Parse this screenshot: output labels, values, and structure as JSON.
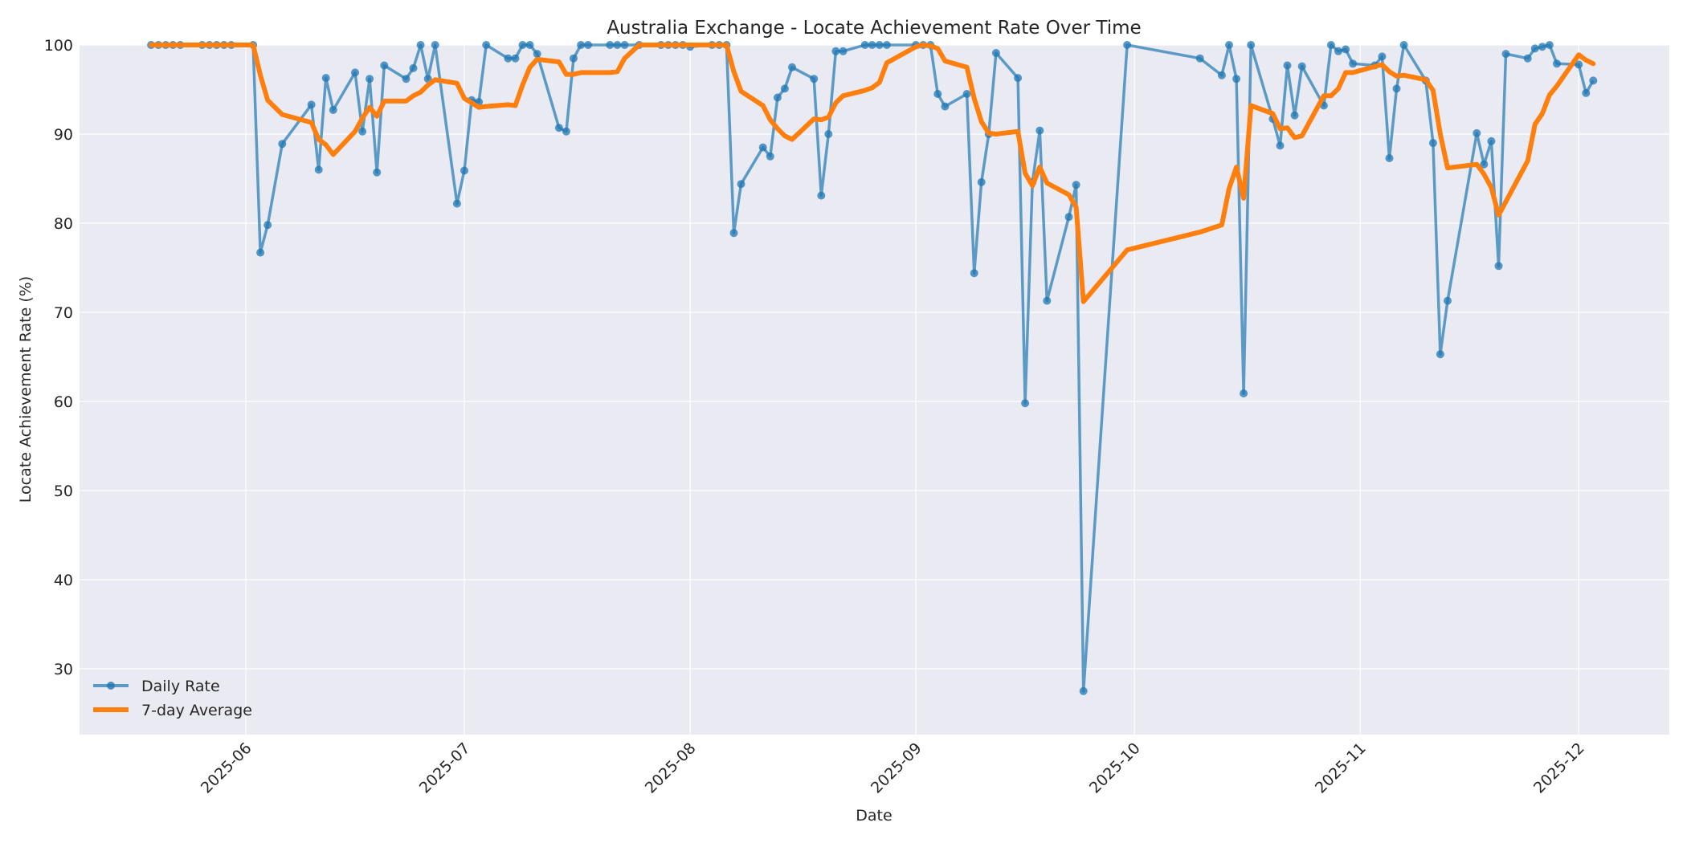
{
  "chart_data": {
    "type": "line",
    "title": "Australia Exchange - Locate Achievement Rate Over Time",
    "xlabel": "Date",
    "ylabel": "Locate Achievement Rate (%)",
    "ylim": [
      22.5,
      100
    ],
    "yticks": [
      30,
      40,
      50,
      60,
      70,
      80,
      90,
      100
    ],
    "xticks": [
      "2025-06",
      "2025-07",
      "2025-08",
      "2025-09",
      "2025-10",
      "2025-11",
      "2025-12"
    ],
    "xlim": [
      "2025-05-10",
      "2025-12-13"
    ],
    "grid": true,
    "legend_position": "lower left",
    "colors": {
      "daily": "#1f77b4",
      "avg": "#ff7f0e",
      "plot_bg": "#eaeaf2",
      "grid": "#ffffff"
    },
    "series": [
      {
        "name": "Daily Rate",
        "style": "line-marker",
        "points": [
          [
            "2025-05-19",
            100
          ],
          [
            "2025-05-20",
            100
          ],
          [
            "2025-05-21",
            100
          ],
          [
            "2025-05-22",
            100
          ],
          [
            "2025-05-23",
            100
          ],
          [
            "2025-05-26",
            100
          ],
          [
            "2025-05-27",
            100
          ],
          [
            "2025-05-28",
            100
          ],
          [
            "2025-05-29",
            100
          ],
          [
            "2025-05-30",
            100
          ],
          [
            "2025-06-02",
            100
          ],
          [
            "2025-06-03",
            76.7
          ],
          [
            "2025-06-04",
            79.8
          ],
          [
            "2025-06-06",
            88.9
          ],
          [
            "2025-06-10",
            93.3
          ],
          [
            "2025-06-11",
            86.0
          ],
          [
            "2025-06-12",
            96.3
          ],
          [
            "2025-06-13",
            92.7
          ],
          [
            "2025-06-16",
            96.9
          ],
          [
            "2025-06-17",
            90.3
          ],
          [
            "2025-06-18",
            96.2
          ],
          [
            "2025-06-19",
            85.7
          ],
          [
            "2025-06-20",
            97.7
          ],
          [
            "2025-06-23",
            96.2
          ],
          [
            "2025-06-24",
            97.4
          ],
          [
            "2025-06-25",
            100
          ],
          [
            "2025-06-26",
            96.2
          ],
          [
            "2025-06-27",
            100
          ],
          [
            "2025-06-30",
            82.2
          ],
          [
            "2025-07-01",
            85.9
          ],
          [
            "2025-07-02",
            93.8
          ],
          [
            "2025-07-03",
            93.6
          ],
          [
            "2025-07-04",
            100
          ],
          [
            "2025-07-07",
            98.5
          ],
          [
            "2025-07-08",
            98.5
          ],
          [
            "2025-07-09",
            100
          ],
          [
            "2025-07-10",
            100
          ],
          [
            "2025-07-11",
            99.0
          ],
          [
            "2025-07-14",
            90.7
          ],
          [
            "2025-07-15",
            90.3
          ],
          [
            "2025-07-16",
            98.5
          ],
          [
            "2025-07-17",
            100
          ],
          [
            "2025-07-18",
            100
          ],
          [
            "2025-07-21",
            100
          ],
          [
            "2025-07-22",
            100
          ],
          [
            "2025-07-23",
            100
          ],
          [
            "2025-07-25",
            100
          ],
          [
            "2025-07-28",
            100
          ],
          [
            "2025-07-29",
            100
          ],
          [
            "2025-07-30",
            100
          ],
          [
            "2025-07-31",
            100
          ],
          [
            "2025-08-01",
            99.8
          ],
          [
            "2025-08-04",
            100
          ],
          [
            "2025-08-05",
            100
          ],
          [
            "2025-08-06",
            100
          ],
          [
            "2025-08-07",
            78.9
          ],
          [
            "2025-08-08",
            84.4
          ],
          [
            "2025-08-11",
            88.5
          ],
          [
            "2025-08-12",
            87.5
          ],
          [
            "2025-08-13",
            94.1
          ],
          [
            "2025-08-14",
            95.1
          ],
          [
            "2025-08-15",
            97.5
          ],
          [
            "2025-08-18",
            96.2
          ],
          [
            "2025-08-19",
            83.1
          ],
          [
            "2025-08-20",
            90.0
          ],
          [
            "2025-08-21",
            99.3
          ],
          [
            "2025-08-22",
            99.3
          ],
          [
            "2025-08-25",
            100
          ],
          [
            "2025-08-26",
            100
          ],
          [
            "2025-08-27",
            100
          ],
          [
            "2025-08-28",
            100
          ],
          [
            "2025-09-01",
            100
          ],
          [
            "2025-09-02",
            100
          ],
          [
            "2025-09-03",
            100
          ],
          [
            "2025-09-04",
            94.5
          ],
          [
            "2025-09-05",
            93.1
          ],
          [
            "2025-09-08",
            94.5
          ],
          [
            "2025-09-09",
            74.4
          ],
          [
            "2025-09-10",
            84.6
          ],
          [
            "2025-09-11",
            90.0
          ],
          [
            "2025-09-12",
            99.1
          ],
          [
            "2025-09-15",
            96.3
          ],
          [
            "2025-09-16",
            59.8
          ],
          [
            "2025-09-17",
            84.6
          ],
          [
            "2025-09-18",
            90.4
          ],
          [
            "2025-09-19",
            71.3
          ],
          [
            "2025-09-22",
            80.7
          ],
          [
            "2025-09-23",
            84.3
          ],
          [
            "2025-09-24",
            27.5
          ],
          [
            "2025-09-30",
            100
          ],
          [
            "2025-10-10",
            98.5
          ],
          [
            "2025-10-13",
            96.6
          ],
          [
            "2025-10-14",
            100
          ],
          [
            "2025-10-15",
            96.2
          ],
          [
            "2025-10-16",
            60.9
          ],
          [
            "2025-10-17",
            100
          ],
          [
            "2025-10-20",
            91.7
          ],
          [
            "2025-10-21",
            88.7
          ],
          [
            "2025-10-22",
            97.7
          ],
          [
            "2025-10-23",
            92.1
          ],
          [
            "2025-10-24",
            97.6
          ],
          [
            "2025-10-27",
            93.2
          ],
          [
            "2025-10-28",
            100
          ],
          [
            "2025-10-29",
            99.3
          ],
          [
            "2025-10-30",
            99.5
          ],
          [
            "2025-10-31",
            97.9
          ],
          [
            "2025-11-03",
            97.7
          ],
          [
            "2025-11-04",
            98.7
          ],
          [
            "2025-11-05",
            87.3
          ],
          [
            "2025-11-06",
            95.1
          ],
          [
            "2025-11-07",
            100
          ],
          [
            "2025-11-10",
            96.0
          ],
          [
            "2025-11-11",
            89.0
          ],
          [
            "2025-11-12",
            65.3
          ],
          [
            "2025-11-13",
            71.3
          ],
          [
            "2025-11-17",
            90.1
          ],
          [
            "2025-11-18",
            86.6
          ],
          [
            "2025-11-19",
            89.2
          ],
          [
            "2025-11-20",
            75.2
          ],
          [
            "2025-11-21",
            99.0
          ],
          [
            "2025-11-24",
            98.5
          ],
          [
            "2025-11-25",
            99.6
          ],
          [
            "2025-11-26",
            99.8
          ],
          [
            "2025-11-27",
            100
          ],
          [
            "2025-11-28",
            97.9
          ],
          [
            "2025-12-01",
            97.8
          ],
          [
            "2025-12-02",
            94.6
          ],
          [
            "2025-12-03",
            96.0
          ]
        ]
      },
      {
        "name": "7-day Average",
        "style": "line",
        "points": [
          [
            "2025-05-19",
            100
          ],
          [
            "2025-06-02",
            100
          ],
          [
            "2025-06-03",
            96.6
          ],
          [
            "2025-06-04",
            93.8
          ],
          [
            "2025-06-06",
            92.2
          ],
          [
            "2025-06-10",
            91.3
          ],
          [
            "2025-06-11",
            89.4
          ],
          [
            "2025-06-12",
            88.8
          ],
          [
            "2025-06-13",
            87.7
          ],
          [
            "2025-06-16",
            90.3
          ],
          [
            "2025-06-17",
            91.8
          ],
          [
            "2025-06-18",
            93.0
          ],
          [
            "2025-06-19",
            92.0
          ],
          [
            "2025-06-20",
            93.7
          ],
          [
            "2025-06-23",
            93.7
          ],
          [
            "2025-06-24",
            94.3
          ],
          [
            "2025-06-25",
            94.7
          ],
          [
            "2025-06-26",
            95.5
          ],
          [
            "2025-06-27",
            96.1
          ],
          [
            "2025-06-30",
            95.7
          ],
          [
            "2025-07-01",
            94.0
          ],
          [
            "2025-07-02",
            93.5
          ],
          [
            "2025-07-03",
            93.0
          ],
          [
            "2025-07-04",
            93.1
          ],
          [
            "2025-07-07",
            93.3
          ],
          [
            "2025-07-08",
            93.2
          ],
          [
            "2025-07-09",
            95.5
          ],
          [
            "2025-07-10",
            97.5
          ],
          [
            "2025-07-11",
            98.4
          ],
          [
            "2025-07-14",
            98.1
          ],
          [
            "2025-07-15",
            96.7
          ],
          [
            "2025-07-16",
            96.7
          ],
          [
            "2025-07-17",
            96.9
          ],
          [
            "2025-07-18",
            96.9
          ],
          [
            "2025-07-21",
            96.9
          ],
          [
            "2025-07-22",
            97.0
          ],
          [
            "2025-07-23",
            98.5
          ],
          [
            "2025-07-25",
            100
          ],
          [
            "2025-08-06",
            100
          ],
          [
            "2025-08-07",
            97.0
          ],
          [
            "2025-08-08",
            94.8
          ],
          [
            "2025-08-11",
            93.2
          ],
          [
            "2025-08-12",
            91.6
          ],
          [
            "2025-08-13",
            90.6
          ],
          [
            "2025-08-14",
            89.8
          ],
          [
            "2025-08-15",
            89.4
          ],
          [
            "2025-08-18",
            91.7
          ],
          [
            "2025-08-19",
            91.6
          ],
          [
            "2025-08-20",
            91.9
          ],
          [
            "2025-08-21",
            93.5
          ],
          [
            "2025-08-22",
            94.3
          ],
          [
            "2025-08-25",
            94.9
          ],
          [
            "2025-08-26",
            95.2
          ],
          [
            "2025-08-27",
            95.8
          ],
          [
            "2025-08-28",
            98.0
          ],
          [
            "2025-09-01",
            99.8
          ],
          [
            "2025-09-02",
            100
          ],
          [
            "2025-09-03",
            99.9
          ],
          [
            "2025-09-04",
            99.6
          ],
          [
            "2025-09-05",
            98.2
          ],
          [
            "2025-09-08",
            97.5
          ],
          [
            "2025-09-09",
            94.0
          ],
          [
            "2025-09-10",
            91.4
          ],
          [
            "2025-09-11",
            90.1
          ],
          [
            "2025-09-12",
            90.0
          ],
          [
            "2025-09-15",
            90.3
          ],
          [
            "2025-09-16",
            85.6
          ],
          [
            "2025-09-17",
            84.2
          ],
          [
            "2025-09-18",
            86.3
          ],
          [
            "2025-09-19",
            84.5
          ],
          [
            "2025-09-22",
            83.2
          ],
          [
            "2025-09-23",
            81.8
          ],
          [
            "2025-09-24",
            71.2
          ],
          [
            "2025-09-30",
            77.0
          ],
          [
            "2025-10-10",
            79.0
          ],
          [
            "2025-10-13",
            79.8
          ],
          [
            "2025-10-14",
            83.9
          ],
          [
            "2025-10-15",
            86.3
          ],
          [
            "2025-10-16",
            82.8
          ],
          [
            "2025-10-17",
            93.2
          ],
          [
            "2025-10-20",
            92.3
          ],
          [
            "2025-10-21",
            90.6
          ],
          [
            "2025-10-22",
            90.7
          ],
          [
            "2025-10-23",
            89.6
          ],
          [
            "2025-10-24",
            89.8
          ],
          [
            "2025-10-27",
            94.3
          ],
          [
            "2025-10-28",
            94.3
          ],
          [
            "2025-10-29",
            95.1
          ],
          [
            "2025-10-30",
            96.9
          ],
          [
            "2025-10-31",
            96.9
          ],
          [
            "2025-11-04",
            97.8
          ],
          [
            "2025-11-05",
            97.0
          ],
          [
            "2025-11-06",
            96.5
          ],
          [
            "2025-11-07",
            96.6
          ],
          [
            "2025-11-10",
            96.1
          ],
          [
            "2025-11-11",
            94.9
          ],
          [
            "2025-11-12",
            90.0
          ],
          [
            "2025-11-13",
            86.2
          ],
          [
            "2025-11-17",
            86.6
          ],
          [
            "2025-11-18",
            85.5
          ],
          [
            "2025-11-19",
            84.0
          ],
          [
            "2025-11-20",
            80.9
          ],
          [
            "2025-11-24",
            87.0
          ],
          [
            "2025-11-25",
            91.1
          ],
          [
            "2025-11-26",
            92.3
          ],
          [
            "2025-11-27",
            94.4
          ],
          [
            "2025-11-28",
            95.4
          ],
          [
            "2025-12-01",
            98.9
          ],
          [
            "2025-12-02",
            98.3
          ],
          [
            "2025-12-03",
            97.9
          ]
        ]
      }
    ]
  },
  "legend": {
    "items": [
      {
        "label": "Daily Rate"
      },
      {
        "label": "7-day Average"
      }
    ]
  }
}
